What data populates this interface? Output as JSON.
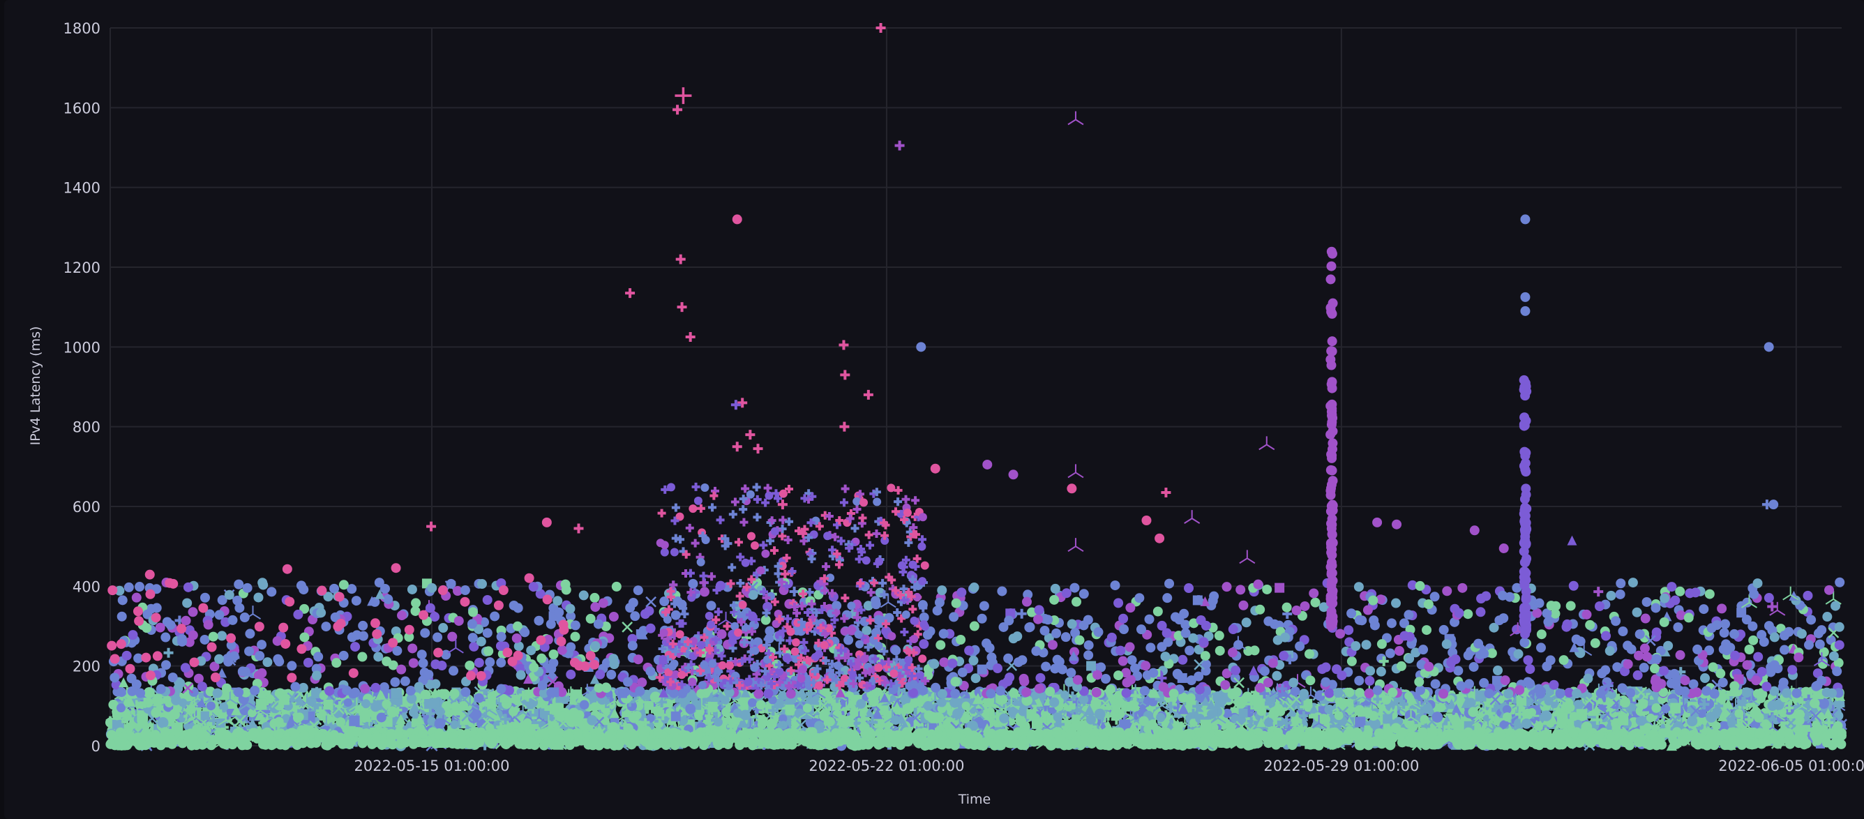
{
  "chart_data": {
    "type": "scatter",
    "title": "",
    "xlabel": "Time",
    "ylabel": "IPv4 Latency (ms)",
    "ylim": [
      0,
      1800
    ],
    "yticks": [
      "0",
      "200",
      "400",
      "600",
      "800",
      "1000",
      "1200",
      "1400",
      "1600",
      "1800"
    ],
    "xlim_days_from_first_tick": [
      -4.95,
      21.7
    ],
    "xticks": [
      {
        "label": "2022-05-15 01:00:00",
        "day": 0
      },
      {
        "label": "2022-05-22 01:00:00",
        "day": 7
      },
      {
        "label": "2022-05-29 01:00:00",
        "day": 14
      },
      {
        "label": "2022-06-05 01:00:00",
        "day": 21
      }
    ],
    "grid": true,
    "legend": "none",
    "colors": {
      "background": "#111118",
      "grid": "#25252d",
      "green": "#7fd3a0",
      "teal": "#6fa7c4",
      "blue": "#6d83d4",
      "purple": "#7c5cd6",
      "violet": "#a152c9",
      "magenta": "#e0559f"
    },
    "dense_band": {
      "typical_range_ms": [
        0,
        130
      ],
      "scatter_range_ms": [
        130,
        420
      ],
      "note_points": 5000
    },
    "outliers": [
      {
        "day": 3.87,
        "ms": 1630,
        "shape": "plus-large",
        "color": "magenta"
      },
      {
        "day": 3.78,
        "ms": 1595,
        "shape": "plus",
        "color": "magenta"
      },
      {
        "day": 3.83,
        "ms": 1220,
        "shape": "plus",
        "color": "magenta"
      },
      {
        "day": 3.85,
        "ms": 1100,
        "shape": "plus",
        "color": "magenta"
      },
      {
        "day": 3.98,
        "ms": 1025,
        "shape": "plus",
        "color": "magenta"
      },
      {
        "day": 3.05,
        "ms": 1135,
        "shape": "plus",
        "color": "magenta"
      },
      {
        "day": 4.7,
        "ms": 1320,
        "shape": "circle",
        "color": "magenta"
      },
      {
        "day": 6.91,
        "ms": 1800,
        "shape": "plus",
        "color": "magenta"
      },
      {
        "day": 7.2,
        "ms": 1505,
        "shape": "plus",
        "color": "violet"
      },
      {
        "day": 7.53,
        "ms": 1000,
        "shape": "circle",
        "color": "blue"
      },
      {
        "day": 6.34,
        "ms": 1005,
        "shape": "plus",
        "color": "magenta"
      },
      {
        "day": 6.36,
        "ms": 930,
        "shape": "plus",
        "color": "magenta"
      },
      {
        "day": 6.72,
        "ms": 880,
        "shape": "plus",
        "color": "magenta"
      },
      {
        "day": 6.35,
        "ms": 800,
        "shape": "plus",
        "color": "magenta"
      },
      {
        "day": 4.78,
        "ms": 860,
        "shape": "plus",
        "color": "magenta"
      },
      {
        "day": 4.68,
        "ms": 855,
        "shape": "plus",
        "color": "purple"
      },
      {
        "day": 4.9,
        "ms": 780,
        "shape": "plus",
        "color": "magenta"
      },
      {
        "day": 4.7,
        "ms": 750,
        "shape": "plus",
        "color": "magenta"
      },
      {
        "day": 5.02,
        "ms": 745,
        "shape": "plus",
        "color": "magenta"
      },
      {
        "day": 5.4,
        "ms": 605,
        "shape": "plus",
        "color": "magenta"
      },
      {
        "day": 2.26,
        "ms": 545,
        "shape": "plus",
        "color": "magenta"
      },
      {
        "day": -0.01,
        "ms": 550,
        "shape": "plus",
        "color": "magenta"
      },
      {
        "day": 1.77,
        "ms": 560,
        "shape": "circle",
        "color": "magenta"
      },
      {
        "day": 9.91,
        "ms": 1570,
        "shape": "tri-down",
        "color": "violet"
      },
      {
        "day": 9.91,
        "ms": 685,
        "shape": "tri-down",
        "color": "violet"
      },
      {
        "day": 9.91,
        "ms": 500,
        "shape": "tri-down",
        "color": "violet"
      },
      {
        "day": 9.85,
        "ms": 645,
        "shape": "circle",
        "color": "magenta"
      },
      {
        "day": 8.55,
        "ms": 705,
        "shape": "circle",
        "color": "violet"
      },
      {
        "day": 8.95,
        "ms": 680,
        "shape": "circle",
        "color": "violet"
      },
      {
        "day": 7.75,
        "ms": 695,
        "shape": "circle",
        "color": "magenta"
      },
      {
        "day": 11.3,
        "ms": 635,
        "shape": "plus",
        "color": "magenta"
      },
      {
        "day": 11.7,
        "ms": 570,
        "shape": "tri-down",
        "color": "violet"
      },
      {
        "day": 12.85,
        "ms": 755,
        "shape": "tri-down",
        "color": "violet"
      },
      {
        "day": 12.55,
        "ms": 470,
        "shape": "tri-down",
        "color": "violet"
      },
      {
        "day": 16.83,
        "ms": 1320,
        "shape": "circle",
        "color": "blue"
      },
      {
        "day": 16.83,
        "ms": 1125,
        "shape": "circle",
        "color": "blue"
      },
      {
        "day": 16.83,
        "ms": 1090,
        "shape": "circle",
        "color": "blue"
      },
      {
        "day": 20.58,
        "ms": 1000,
        "shape": "circle",
        "color": "blue"
      },
      {
        "day": 20.55,
        "ms": 605,
        "shape": "plus",
        "color": "blue"
      },
      {
        "day": 20.65,
        "ms": 605,
        "shape": "circle",
        "color": "blue"
      },
      {
        "day": 17.55,
        "ms": 515,
        "shape": "triangle",
        "color": "purple"
      },
      {
        "day": 14.55,
        "ms": 560,
        "shape": "circle",
        "color": "violet"
      },
      {
        "day": 14.85,
        "ms": 555,
        "shape": "circle",
        "color": "violet"
      },
      {
        "day": 16.05,
        "ms": 540,
        "shape": "circle",
        "color": "violet"
      },
      {
        "day": 16.5,
        "ms": 495,
        "shape": "circle",
        "color": "violet"
      },
      {
        "day": 11.2,
        "ms": 520,
        "shape": "circle",
        "color": "magenta"
      },
      {
        "day": 11.0,
        "ms": 565,
        "shape": "circle",
        "color": "magenta"
      }
    ],
    "spike_columns": [
      {
        "day": 13.85,
        "ms_range": [
          300,
          1240
        ],
        "color": "violet"
      },
      {
        "day": 16.83,
        "ms_range": [
          280,
          920
        ],
        "color": "purple"
      }
    ],
    "burst_period": {
      "day_range": [
        3.5,
        7.6
      ],
      "ms_range": [
        150,
        650
      ],
      "shape": "plus",
      "colors": [
        "magenta",
        "violet",
        "purple"
      ]
    }
  }
}
